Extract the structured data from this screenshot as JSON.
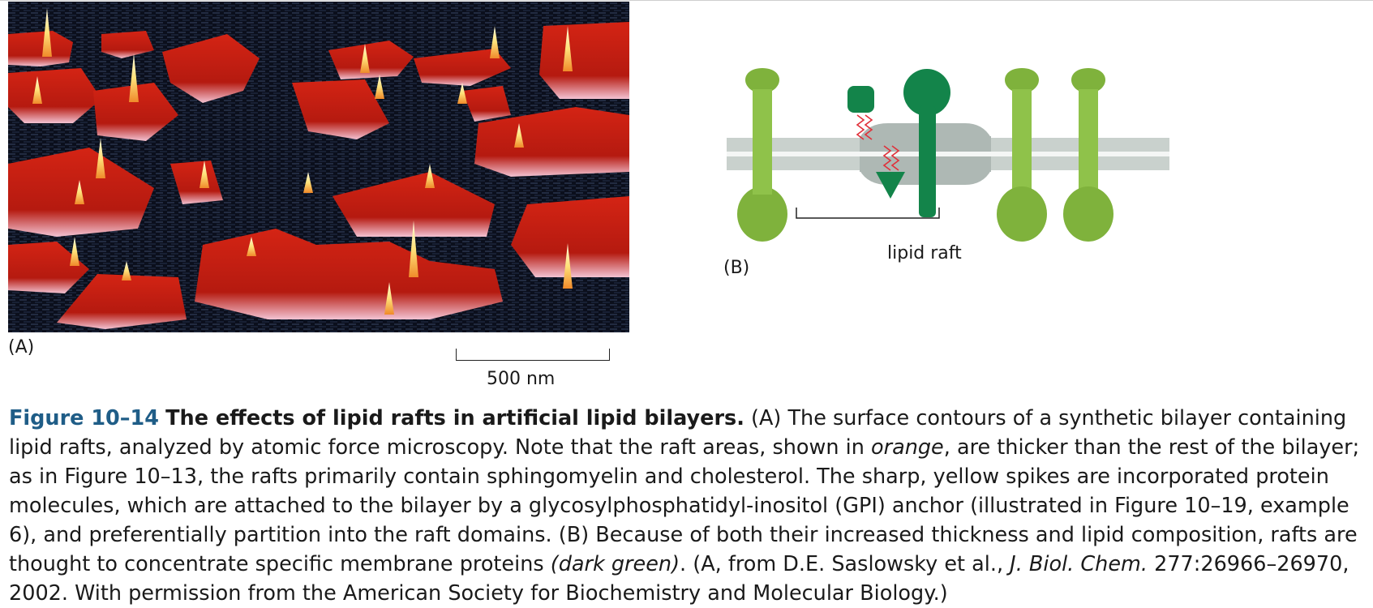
{
  "panel_a": {
    "label": "(A)",
    "scale_bar_label": "500 nm",
    "colors": {
      "background": "#0a0d17",
      "raft": "#c81c0c",
      "spike": "#ffe27a"
    }
  },
  "panel_b": {
    "label": "(B)",
    "raft_label": "lipid raft",
    "colors": {
      "bilayer": "#c9d1cd",
      "raft_bilayer": "#aeb8b4",
      "protein_light": "#7fb23c",
      "protein_dark": "#13844a",
      "lipid_tail": "#e0303a"
    }
  },
  "caption": {
    "figure_number": "Figure 10–14",
    "title": "The effects of lipid rafts in artificial lipid bilayers.",
    "text_1": " (A) The surface contours of a synthetic bilayer containing lipid rafts, analyzed by atomic force microscopy. Note that the raft areas, shown in ",
    "italic_1": "orange",
    "text_2": ", are thicker than the rest of the bilayer; as in Figure 10–13, the rafts primarily contain sphingomyelin and cholesterol. The sharp, yellow spikes are incorporated protein molecules, which are attached to the bilayer by a glycosylphosphatidyl-inositol (GPI) anchor (illustrated in Figure 10–19, example 6), and preferentially partition into the raft domains. (B) Because of both their increased thickness and lipid composition, rafts are thought to concentrate specific membrane proteins ",
    "italic_2": "(dark green)",
    "text_3": ". (A, from D.E. Saslowsky et al., ",
    "italic_3": "J. Biol. Chem.",
    "text_4": " 277:26966–26970, 2002. With permission from the American Society for Biochemistry and Molecular Biology.)"
  }
}
